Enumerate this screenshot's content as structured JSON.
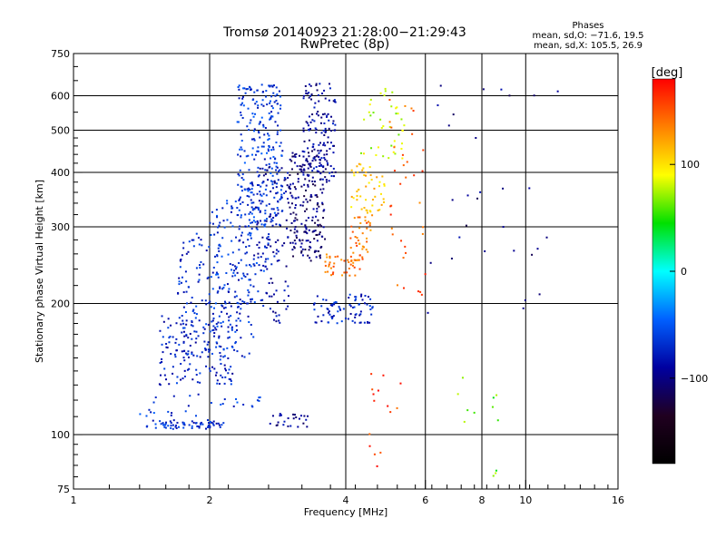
{
  "chart_data": {
    "type": "scatter",
    "title": "Tromsø 20140923 21:28:00−21:29:43",
    "subtitle": "RwPretec (8p)",
    "xlabel": "Frequency [MHz]",
    "ylabel": "Stationary phase Virtual Height [km]",
    "x_scale": "log",
    "y_scale": "log",
    "xlim": [
      1,
      16
    ],
    "ylim": [
      75,
      750
    ],
    "x_ticks": [
      "1",
      "2",
      "4",
      "6",
      "8",
      "10",
      "16"
    ],
    "x_tick_values": [
      1,
      2,
      4,
      6,
      8,
      10,
      16
    ],
    "y_ticks": [
      "75",
      "100",
      "200",
      "300",
      "400",
      "500",
      "600",
      "750"
    ],
    "y_tick_values": [
      75,
      100,
      200,
      300,
      400,
      500,
      600,
      750
    ],
    "grid": true,
    "phase_info": {
      "title": "Phases",
      "line1": "mean, sd,O: −71.6, 19.5",
      "line2": "mean, sd,X: 105.5, 26.9"
    },
    "colorbar": {
      "label": "[deg]",
      "min": -180,
      "max": 180,
      "ticks": [
        "100",
        "0",
        "−100"
      ],
      "tick_values": [
        100,
        0,
        -100
      ],
      "colors": [
        "#ff0000",
        "#ff8000",
        "#ffff00",
        "#00e000",
        "#00ffff",
        "#0060ff",
        "#0000a0",
        "#200020",
        "#000000"
      ]
    },
    "point_clusters": [
      {
        "x": [
          1.45,
          2.15
        ],
        "y": [
          103,
          108
        ],
        "phase": -70,
        "n": 70
      },
      {
        "x": [
          2.7,
          3.3
        ],
        "y": [
          104,
          112
        ],
        "phase": -95,
        "n": 25
      },
      {
        "x": [
          1.4,
          2.6
        ],
        "y": [
          110,
          125
        ],
        "phase": -65,
        "n": 30
      },
      {
        "x": [
          1.55,
          2.3
        ],
        "y": [
          130,
          190
        ],
        "phase": -75,
        "n": 160
      },
      {
        "x": [
          1.7,
          2.5
        ],
        "y": [
          150,
          290
        ],
        "phase": -70,
        "n": 170
      },
      {
        "x": [
          2.0,
          2.7
        ],
        "y": [
          200,
          350
        ],
        "phase": -65,
        "n": 120
      },
      {
        "x": [
          2.3,
          2.9
        ],
        "y": [
          300,
          640
        ],
        "phase": -65,
        "n": 260
      },
      {
        "x": [
          2.5,
          3.0
        ],
        "y": [
          180,
          420
        ],
        "phase": -85,
        "n": 120
      },
      {
        "x": [
          3.0,
          3.6
        ],
        "y": [
          250,
          450
        ],
        "phase": -105,
        "n": 190
      },
      {
        "x": [
          3.2,
          3.8
        ],
        "y": [
          380,
          640
        ],
        "phase": -90,
        "n": 150
      },
      {
        "x": [
          3.4,
          4.6
        ],
        "y": [
          180,
          210
        ],
        "phase": -75,
        "n": 80
      },
      {
        "x": [
          3.6,
          4.3
        ],
        "y": [
          230,
          260
        ],
        "phase": 140,
        "n": 40
      },
      {
        "x": [
          4.1,
          4.6
        ],
        "y": [
          250,
          320
        ],
        "phase": 140,
        "n": 40
      },
      {
        "x": [
          4.1,
          4.9
        ],
        "y": [
          320,
          420
        ],
        "phase": 110,
        "n": 50
      },
      {
        "x": [
          4.3,
          5.4
        ],
        "y": [
          430,
          640
        ],
        "phase": 80,
        "n": 40
      },
      {
        "x": [
          5.0,
          6.0
        ],
        "y": [
          200,
          620
        ],
        "phase": 150,
        "n": 35
      },
      {
        "x": [
          4.5,
          5.3
        ],
        "y": [
          80,
          140
        ],
        "phase": 160,
        "n": 15
      },
      {
        "x": [
          6.0,
          12.0
        ],
        "y": [
          180,
          650
        ],
        "phase": -100,
        "n": 30
      },
      {
        "x": [
          7.0,
          8.8
        ],
        "y": [
          80,
          140
        ],
        "phase": 60,
        "n": 12
      }
    ]
  }
}
